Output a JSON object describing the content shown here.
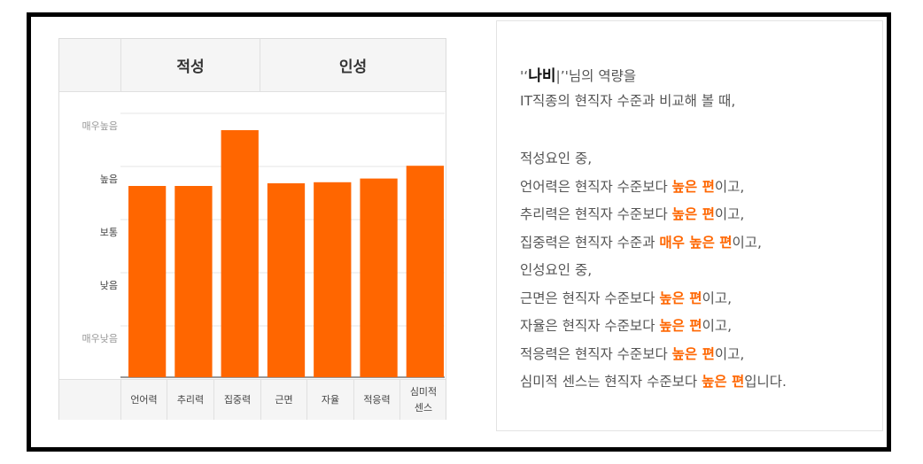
{
  "chart_data": {
    "type": "bar",
    "groups": [
      {
        "label": "적성",
        "categories": [
          "언어력",
          "추리력",
          "집중력"
        ]
      },
      {
        "label": "인성",
        "categories": [
          "근면",
          "자율",
          "적응력",
          "심미적\n센스"
        ]
      }
    ],
    "categories": [
      "언어력",
      "추리력",
      "집중력",
      "근면",
      "자율",
      "적응력",
      "심미적\n센스"
    ],
    "values": [
      3.6,
      3.6,
      4.65,
      3.65,
      3.67,
      3.74,
      3.98
    ],
    "y_ticks": [
      "매우낮음",
      "낮음",
      "보통",
      "높음",
      "매우높음"
    ],
    "ylim": [
      0,
      5
    ],
    "colors": {
      "bar": "#ff6600",
      "highlight": "#ff6600"
    },
    "grid": true
  },
  "summary": {
    "intro_prefix": "'‘",
    "name": "나비",
    "intro_suffix": "|’'님의 역량을",
    "line2": "IT직종의 현직자 수준과 비교해 볼 때,",
    "rows": [
      {
        "pre": "적성요인 중,",
        "hl": "",
        "post": ""
      },
      {
        "pre": "언어력은 현직자 수준보다 ",
        "hl": "높은 편",
        "post": "이고,"
      },
      {
        "pre": "추리력은 현직자 수준보다 ",
        "hl": "높은 편",
        "post": "이고,"
      },
      {
        "pre": "집중력은 현직자 수준과 ",
        "hl": "매우 높은 편",
        "post": "이고,"
      },
      {
        "pre": "인성요인 중,",
        "hl": "",
        "post": ""
      },
      {
        "pre": "근면은 현직자 수준보다 ",
        "hl": "높은 편",
        "post": "이고,"
      },
      {
        "pre": "자율은 현직자 수준보다 ",
        "hl": "높은 편",
        "post": "이고,"
      },
      {
        "pre": "적응력은 현직자 수준보다 ",
        "hl": "높은 편",
        "post": "이고,"
      },
      {
        "pre": "심미적 센스는 현직자 수준보다 ",
        "hl": "높은 편",
        "post": "입니다."
      }
    ]
  }
}
